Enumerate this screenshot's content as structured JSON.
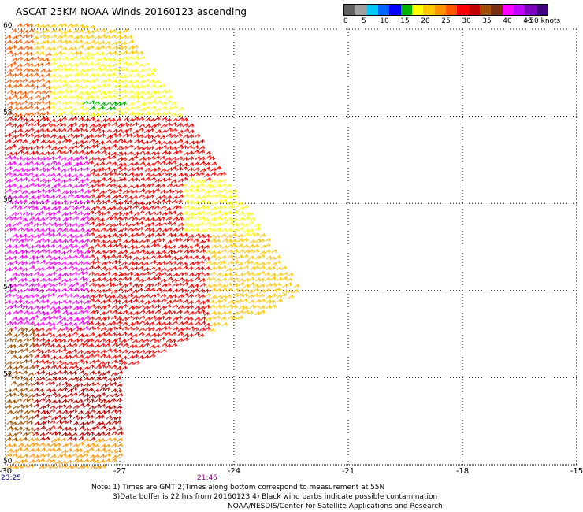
{
  "title": "ASCAT 25KM NOAA Winds 20160123 ascending",
  "colorbar": {
    "colors": [
      "#606060",
      "#a0a0a0",
      "#00c8ff",
      "#0064ff",
      "#0000ff",
      "#00b400",
      "#ffff00",
      "#ffc800",
      "#ff9600",
      "#ff5a00",
      "#ff0000",
      "#c00000",
      "#a05000",
      "#7a3010",
      "#ff00ff",
      "#c000ff",
      "#8000c0",
      "#400080"
    ],
    "labels": [
      "0",
      "5",
      "10",
      "15",
      "20",
      "25",
      "30",
      "35",
      "40",
      "45",
      ">50 knots"
    ]
  },
  "axes": {
    "latitude_labels": [
      "60",
      "58",
      "56",
      "54",
      "52",
      "50"
    ],
    "longitude_labels": [
      "-30",
      "-27",
      "-24",
      "-21",
      "-18",
      "-15"
    ],
    "lat_range": [
      50,
      60
    ],
    "lon_range": [
      -30,
      -15
    ],
    "grid": "dotted"
  },
  "time_labels": [
    {
      "text": "23:25",
      "color": "#000080"
    },
    {
      "text": "21:45",
      "color": "#800080"
    }
  ],
  "notes": [
    "Note: 1) Times are GMT 2)Times along bottom correspond to measurement at 55N",
    "3)Data buffer is 22 hrs from 20160123 4) Black wind barbs indicate possible contamination",
    "NOAA/NESDIS/Center for Satellite Applications and Research"
  ]
}
